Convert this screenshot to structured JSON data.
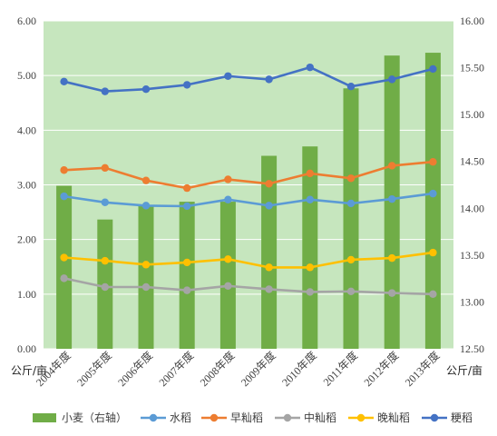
{
  "colors": {
    "background": "#C6E6BE",
    "grid": "#FFFFFF",
    "bar": "#70AD47",
    "water_rice": "#5B9BD5",
    "early_indica": "#ED7D31",
    "mid_indica": "#A5A5A5",
    "late_indica": "#FFC000",
    "japonica": "#4472C4"
  },
  "chart_data": {
    "type": "bar+line",
    "categories": [
      "2004年度",
      "2005年度",
      "2006年度",
      "2007年度",
      "2008年度",
      "2009年度",
      "2010年度",
      "2011年度",
      "2012年度",
      "2013年度"
    ],
    "y_left": {
      "label": "公斤/亩",
      "lim": [
        0,
        6
      ],
      "ticks": [
        "0.00",
        "1.00",
        "2.00",
        "3.00",
        "4.00",
        "5.00",
        "6.00"
      ]
    },
    "y_right": {
      "label": "公斤/亩",
      "lim": [
        12.5,
        16.0
      ],
      "ticks": [
        "12.50",
        "13.00",
        "13.50",
        "14.00",
        "14.50",
        "15.00",
        "15.50",
        "16.00"
      ]
    },
    "grid": true,
    "legend_position": "bottom",
    "bar_series": {
      "name": "小麦（右轴）",
      "axis": "right",
      "values": [
        14.24,
        13.88,
        14.03,
        14.07,
        14.07,
        14.56,
        14.66,
        15.28,
        15.63,
        15.66
      ]
    },
    "line_series": [
      {
        "name": "水稻",
        "color_key": "water_rice",
        "values": [
          2.79,
          2.68,
          2.62,
          2.61,
          2.73,
          2.62,
          2.73,
          2.66,
          2.74,
          2.84
        ]
      },
      {
        "name": "早籼稻",
        "color_key": "early_indica",
        "values": [
          3.27,
          3.31,
          3.08,
          2.94,
          3.1,
          3.02,
          3.21,
          3.12,
          3.35,
          3.42
        ]
      },
      {
        "name": "中籼稻",
        "color_key": "mid_indica",
        "values": [
          1.29,
          1.13,
          1.13,
          1.07,
          1.15,
          1.09,
          1.04,
          1.05,
          1.02,
          1.0
        ]
      },
      {
        "name": "晚籼稻",
        "color_key": "late_indica",
        "values": [
          1.67,
          1.61,
          1.54,
          1.58,
          1.64,
          1.49,
          1.49,
          1.63,
          1.66,
          1.76
        ]
      },
      {
        "name": "粳稻",
        "color_key": "japonica",
        "values": [
          4.89,
          4.71,
          4.75,
          4.83,
          4.99,
          4.93,
          5.15,
          4.8,
          4.93,
          5.12
        ]
      }
    ]
  }
}
